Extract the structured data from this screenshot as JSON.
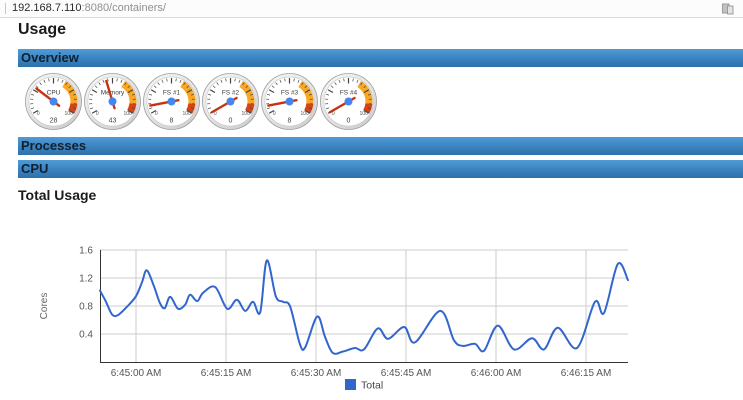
{
  "browser": {
    "url_host": "192.168.7.110",
    "url_rest": ":8080/containers/",
    "page_icon": "compatibility-view-icon"
  },
  "headings": {
    "usage": "Usage",
    "total_usage": "Total Usage"
  },
  "section_headers": {
    "overview": "Overview",
    "processes": "Processes",
    "cpu": "CPU"
  },
  "gauges": {
    "items": [
      {
        "label": "CPU",
        "value": 28
      },
      {
        "label": "Memory",
        "value": 43
      },
      {
        "label": "FS #1",
        "value": 8
      },
      {
        "label": "FS #2",
        "value": 0
      },
      {
        "label": "FS #3",
        "value": 8
      },
      {
        "label": "FS #4",
        "value": 0
      }
    ],
    "scale": {
      "min": 0,
      "max": 100,
      "min_label": "0",
      "max_label": "100",
      "yellow_from": 63,
      "red_from": 90,
      "yellow_color": "#F9A825",
      "red_color": "#D84315",
      "needle_color": "#C63310",
      "hub_color": "#4684EE"
    }
  },
  "chart_data": {
    "type": "line",
    "title": "Total Usage",
    "xlabel": "",
    "ylabel": "Cores",
    "ylim": [
      0,
      1.6
    ],
    "yticks": [
      0.4,
      0.8,
      1.2,
      1.6
    ],
    "xtick_labels": [
      "6:45:00 AM",
      "6:45:15 AM",
      "6:45:30 AM",
      "6:45:45 AM",
      "6:46:00 AM",
      "6:46:15 AM"
    ],
    "xtick_t": [
      6,
      21,
      36,
      51,
      66,
      81
    ],
    "x_range_t": [
      0,
      88
    ],
    "grid": true,
    "legend_position": "bottom",
    "line_color": "#3366CC",
    "axis_color": "#333333",
    "grid_color": "#cccccc",
    "label_color": "#555555",
    "series": [
      {
        "name": "Total",
        "points": [
          [
            0,
            1.02
          ],
          [
            1,
            0.86
          ],
          [
            2,
            0.68
          ],
          [
            3,
            0.67
          ],
          [
            4.5,
            0.79
          ],
          [
            6,
            0.94
          ],
          [
            7,
            1.14
          ],
          [
            7.8,
            1.31
          ],
          [
            9,
            1.08
          ],
          [
            10,
            0.84
          ],
          [
            10.8,
            0.77
          ],
          [
            11.7,
            0.93
          ],
          [
            13,
            0.76
          ],
          [
            14.2,
            0.82
          ],
          [
            15,
            0.96
          ],
          [
            16.2,
            0.87
          ],
          [
            17.2,
            0.99
          ],
          [
            19.2,
            1.07
          ],
          [
            21.2,
            0.76
          ],
          [
            22.8,
            0.89
          ],
          [
            24.2,
            0.73
          ],
          [
            25.5,
            0.86
          ],
          [
            26.7,
            0.71
          ],
          [
            27.8,
            1.45
          ],
          [
            29.3,
            0.94
          ],
          [
            30.5,
            0.86
          ],
          [
            31.7,
            0.79
          ],
          [
            33.3,
            0.26
          ],
          [
            34.2,
            0.21
          ],
          [
            36.2,
            0.65
          ],
          [
            37.5,
            0.36
          ],
          [
            38.8,
            0.13
          ],
          [
            40.5,
            0.15
          ],
          [
            42.5,
            0.2
          ],
          [
            44,
            0.18
          ],
          [
            46.3,
            0.48
          ],
          [
            48,
            0.33
          ],
          [
            50.7,
            0.5
          ],
          [
            52.5,
            0.28
          ],
          [
            56.7,
            0.73
          ],
          [
            59,
            0.31
          ],
          [
            60.5,
            0.23
          ],
          [
            62.5,
            0.26
          ],
          [
            64,
            0.16
          ],
          [
            66.3,
            0.52
          ],
          [
            69,
            0.18
          ],
          [
            72,
            0.34
          ],
          [
            74,
            0.18
          ],
          [
            76.3,
            0.49
          ],
          [
            79.5,
            0.2
          ],
          [
            82.5,
            0.86
          ],
          [
            84,
            0.7
          ],
          [
            86.3,
            1.4
          ],
          [
            88,
            1.17
          ]
        ]
      }
    ]
  },
  "colors": {
    "banner_top": "#4F9BD6",
    "banner_bottom": "#2E71AB",
    "banner_text": "#10202E"
  }
}
